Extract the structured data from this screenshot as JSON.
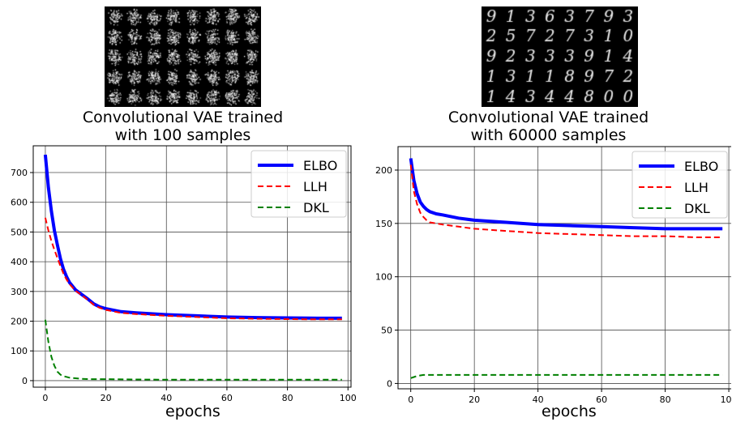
{
  "charts": [
    {
      "title_line1": "Convolutional VAE trained",
      "title_line2": "with 100 samples",
      "xlabel": "epochs",
      "samples_image": "noisy-digit-samples",
      "chart_data": {
        "type": "line",
        "xlim": [
          -4,
          101
        ],
        "ylim": [
          -22,
          790
        ],
        "xticks": [
          0,
          20,
          40,
          60,
          80,
          100
        ],
        "yticks": [
          0,
          100,
          200,
          300,
          400,
          500,
          600,
          700
        ],
        "grid": true,
        "legend_position": "top-right",
        "xlabel": "epochs",
        "series": [
          {
            "name": "ELBO",
            "color": "#0000ff",
            "style": "solid",
            "x": [
              0,
              1,
              2,
              3,
              4,
              5,
              6,
              7,
              8,
              10,
              12,
              14,
              16,
              18,
              20,
              25,
              30,
              40,
              50,
              60,
              70,
              80,
              90,
              98
            ],
            "y": [
              760,
              650,
              570,
              505,
              455,
              410,
              375,
              350,
              330,
              305,
              290,
              275,
              258,
              248,
              242,
              232,
              228,
              222,
              218,
              214,
              212,
              211,
              210,
              210
            ]
          },
          {
            "name": "LLH",
            "color": "#ff0000",
            "style": "dashed",
            "x": [
              0,
              1,
              2,
              3,
              4,
              5,
              6,
              7,
              8,
              10,
              12,
              14,
              16,
              18,
              20,
              25,
              30,
              40,
              50,
              60,
              70,
              80,
              90,
              98
            ],
            "y": [
              548,
              505,
              470,
              440,
              412,
              385,
              360,
              340,
              325,
              302,
              288,
              272,
              255,
              245,
              238,
              228,
              224,
              218,
              214,
              210,
              208,
              207,
              206,
              206
            ]
          },
          {
            "name": "DKL",
            "color": "#008000",
            "style": "dashed",
            "x": [
              0,
              1,
              2,
              3,
              4,
              5,
              6,
              8,
              10,
              12,
              15,
              20,
              30,
              40,
              50,
              60,
              70,
              80,
              90,
              98
            ],
            "y": [
              205,
              130,
              80,
              50,
              30,
              20,
              15,
              10,
              8,
              6,
              5,
              5,
              4,
              3,
              3,
              3,
              3,
              3,
              3,
              3
            ]
          }
        ]
      }
    },
    {
      "title_line1": "Convolutional VAE trained",
      "title_line2": "with 60000 samples",
      "xlabel": "epochs",
      "samples_image": "handwritten-digit-samples",
      "chart_data": {
        "type": "line",
        "xlim": [
          -4,
          101
        ],
        "ylim": [
          -5,
          222
        ],
        "xticks": [
          0,
          20,
          40,
          60,
          80,
          100
        ],
        "yticks": [
          0,
          50,
          100,
          150,
          200
        ],
        "grid": true,
        "legend_position": "top-right",
        "xlabel": "epochs",
        "series": [
          {
            "name": "ELBO",
            "color": "#0000ff",
            "style": "solid",
            "x": [
              0,
              1,
              2,
              3,
              4,
              5,
              6,
              8,
              10,
              15,
              20,
              30,
              40,
              50,
              60,
              70,
              80,
              90,
              98
            ],
            "y": [
              211,
              190,
              178,
              170,
              166,
              163,
              161,
              159,
              158,
              155,
              153,
              151,
              149,
              148,
              147,
              146,
              145,
              145,
              145
            ]
          },
          {
            "name": "LLH",
            "color": "#ff0000",
            "style": "dashed",
            "x": [
              0,
              1,
              2,
              3,
              4,
              5,
              6,
              8,
              10,
              15,
              20,
              30,
              40,
              50,
              60,
              70,
              80,
              90,
              98
            ],
            "y": [
              205,
              180,
              168,
              160,
              156,
              153,
              151,
              150,
              149,
              147,
              145,
              143,
              141,
              140,
              139,
              138,
              138,
              137,
              137
            ]
          },
          {
            "name": "DKL",
            "color": "#008000",
            "style": "dashed",
            "x": [
              0,
              1,
              2,
              3,
              4,
              5,
              10,
              20,
              40,
              60,
              80,
              98
            ],
            "y": [
              5,
              6,
              7,
              7.5,
              8,
              8,
              8,
              8,
              8,
              8,
              8,
              8
            ]
          }
        ]
      }
    }
  ]
}
